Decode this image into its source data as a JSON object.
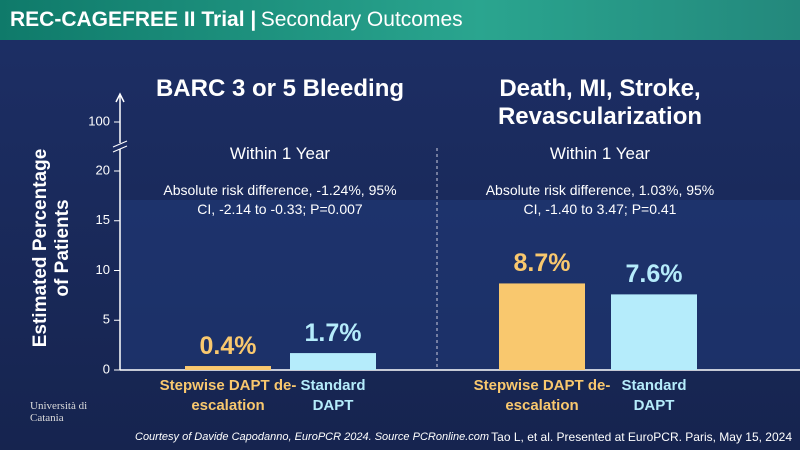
{
  "header": {
    "title_bold": "REC-CAGEFREE II Trial |",
    "title_rest": "Secondary Outcomes"
  },
  "footer": {
    "courtesy": "Courtesy of Davide Capodanno, EuroPCR 2024. Source PCRonline.com",
    "citation": "Tao L, et al. Presented at EuroPCR. Paris, May 15, 2024",
    "logo": "Università di Catania"
  },
  "chart_data": [
    {
      "type": "bar",
      "title": "BARC 3 or 5 Bleeding",
      "subtitle": "Within 1 Year",
      "annotation": "Absolute risk difference, -1.24%, 95% CI, -2.14 to -0.33; P=0.007",
      "ylabel": "Estimated Percentage of Patients",
      "ylim": [
        0,
        100
      ],
      "yticks": [
        0,
        5,
        10,
        15,
        20,
        100
      ],
      "axis_break": true,
      "categories": [
        "Stepwise DAPT de-escalation",
        "Standard DAPT"
      ],
      "values": [
        0.4,
        1.7
      ],
      "value_labels": [
        "0.4%",
        "1.7%"
      ],
      "colors": [
        "#f9c86e",
        "#b5ecfb"
      ]
    },
    {
      "type": "bar",
      "title": "Death, MI, Stroke, Revascularization",
      "subtitle": "Within 1 Year",
      "annotation": "Absolute risk difference, 1.03%, 95% CI, -1.40 to 3.47; P=0.41",
      "categories": [
        "Stepwise DAPT de-escalation",
        "Standard DAPT"
      ],
      "values": [
        8.7,
        7.6
      ],
      "value_labels": [
        "8.7%",
        "7.6%"
      ],
      "colors": [
        "#f9c86e",
        "#b5ecfb"
      ]
    }
  ]
}
